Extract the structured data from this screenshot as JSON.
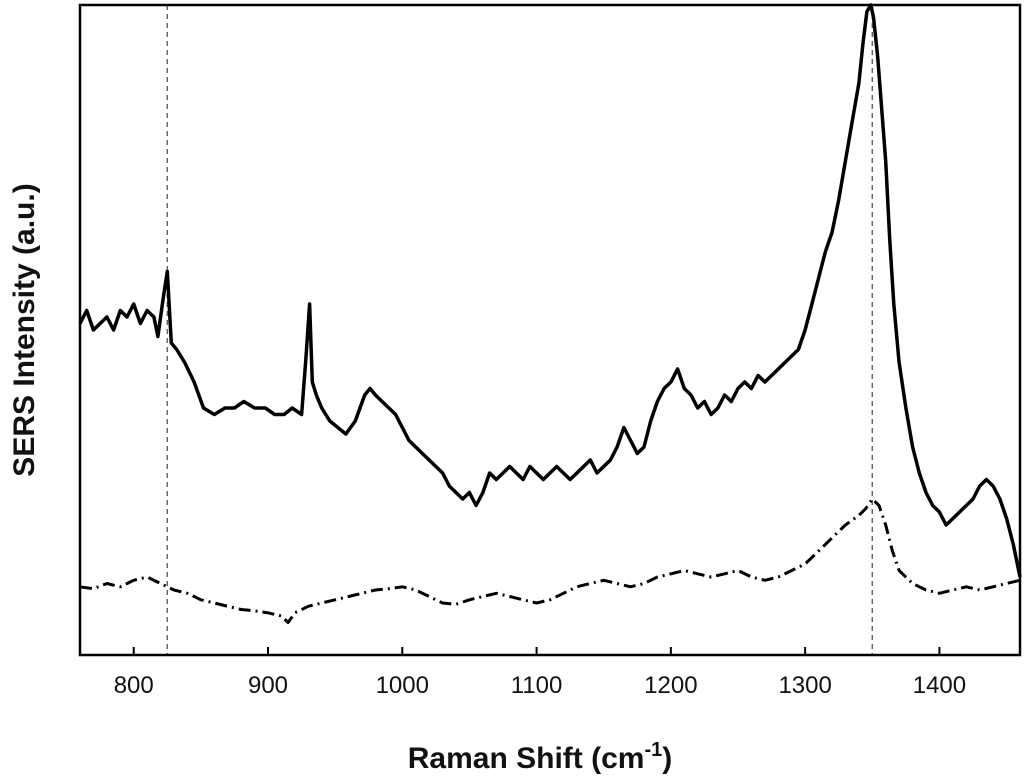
{
  "chart_data": {
    "type": "line",
    "title": "",
    "xlabel": "Raman Shift (cm",
    "xlabel_sup": "-1",
    "xlabel_end": ")",
    "ylabel": "SERS Intensity (a.u.)",
    "xlim": [
      760,
      1460
    ],
    "ylim": [
      0,
      100
    ],
    "x_ticks": [
      800,
      900,
      1000,
      1100,
      1200,
      1300,
      1400
    ],
    "y_ticks": [],
    "grid": false,
    "legend": "none",
    "reference_lines_x": [
      825,
      1350
    ],
    "series": [
      {
        "style": "solid",
        "color": "#000000",
        "x": [
          760,
          765,
          770,
          775,
          780,
          785,
          790,
          795,
          800,
          805,
          810,
          815,
          818,
          822,
          825,
          828,
          832,
          838,
          845,
          852,
          860,
          868,
          875,
          882,
          890,
          898,
          905,
          912,
          918,
          925,
          928,
          931,
          933,
          936,
          940,
          946,
          952,
          958,
          965,
          972,
          976,
          980,
          985,
          990,
          995,
          1000,
          1005,
          1010,
          1015,
          1020,
          1025,
          1030,
          1035,
          1040,
          1045,
          1050,
          1055,
          1060,
          1065,
          1070,
          1075,
          1080,
          1085,
          1090,
          1095,
          1100,
          1105,
          1110,
          1115,
          1120,
          1125,
          1130,
          1135,
          1140,
          1145,
          1150,
          1155,
          1160,
          1165,
          1170,
          1175,
          1180,
          1185,
          1190,
          1195,
          1200,
          1205,
          1210,
          1215,
          1220,
          1225,
          1230,
          1235,
          1240,
          1245,
          1250,
          1255,
          1260,
          1265,
          1270,
          1275,
          1280,
          1285,
          1290,
          1295,
          1300,
          1305,
          1310,
          1315,
          1320,
          1325,
          1330,
          1335,
          1340,
          1343,
          1346,
          1349,
          1351,
          1354,
          1357,
          1360,
          1363,
          1366,
          1370,
          1375,
          1380,
          1385,
          1390,
          1395,
          1400,
          1405,
          1410,
          1415,
          1420,
          1425,
          1430,
          1435,
          1440,
          1445,
          1450,
          1455,
          1460
        ],
        "y": [
          51,
          53,
          50,
          51,
          52,
          50,
          53,
          52,
          54,
          51,
          53,
          52,
          49,
          55,
          59,
          48,
          47,
          45,
          42,
          38,
          37,
          38,
          38,
          39,
          38,
          38,
          37,
          37,
          38,
          37,
          45,
          54,
          42,
          40,
          38,
          36,
          35,
          34,
          36,
          40,
          41,
          40,
          39,
          38,
          37,
          35,
          33,
          32,
          31,
          30,
          29,
          28,
          26,
          25,
          24,
          25,
          23,
          25,
          28,
          27,
          28,
          29,
          28,
          27,
          29,
          28,
          27,
          28,
          29,
          28,
          27,
          28,
          29,
          30,
          28,
          29,
          30,
          32,
          35,
          33,
          31,
          32,
          36,
          39,
          41,
          42,
          44,
          41,
          40,
          38,
          39,
          37,
          38,
          40,
          39,
          41,
          42,
          41,
          43,
          42,
          43,
          44,
          45,
          46,
          47,
          50,
          54,
          58,
          62,
          65,
          70,
          76,
          82,
          88,
          94,
          99,
          100,
          98,
          92,
          84,
          76,
          64,
          54,
          45,
          38,
          32,
          28,
          25,
          23,
          22,
          20,
          21,
          22,
          23,
          24,
          26,
          27,
          26,
          24,
          21,
          17,
          12
        ]
      },
      {
        "style": "dash-dot",
        "color": "#000000",
        "x": [
          760,
          770,
          780,
          790,
          800,
          810,
          820,
          825,
          830,
          840,
          850,
          860,
          870,
          880,
          890,
          900,
          910,
          915,
          920,
          930,
          940,
          950,
          960,
          970,
          980,
          990,
          1000,
          1010,
          1020,
          1030,
          1040,
          1050,
          1060,
          1070,
          1080,
          1090,
          1100,
          1110,
          1120,
          1130,
          1140,
          1150,
          1160,
          1170,
          1180,
          1190,
          1200,
          1210,
          1220,
          1230,
          1240,
          1250,
          1260,
          1270,
          1280,
          1290,
          1300,
          1310,
          1320,
          1330,
          1340,
          1345,
          1350,
          1355,
          1360,
          1365,
          1370,
          1380,
          1390,
          1400,
          1410,
          1420,
          1430,
          1440,
          1450,
          1460
        ],
        "y": [
          10.5,
          10.2,
          11,
          10.5,
          11.5,
          12,
          11,
          10.5,
          10,
          9.5,
          8.5,
          8,
          7.5,
          7,
          6.8,
          6.5,
          6,
          5,
          6.5,
          7.5,
          8,
          8.5,
          9,
          9.5,
          10,
          10.2,
          10.5,
          10,
          9,
          8,
          7.8,
          8.5,
          9,
          9.5,
          9,
          8.5,
          8,
          8.5,
          9.5,
          10.5,
          11,
          11.5,
          11,
          10.5,
          11,
          12,
          12.5,
          13,
          12.5,
          12,
          12.5,
          13,
          12,
          11.5,
          12,
          13,
          14,
          16,
          18,
          20,
          21.5,
          22.5,
          24,
          23,
          20,
          16,
          13,
          11,
          10,
          9.5,
          10,
          10.5,
          10,
          10.5,
          11,
          11.5
        ]
      }
    ]
  }
}
